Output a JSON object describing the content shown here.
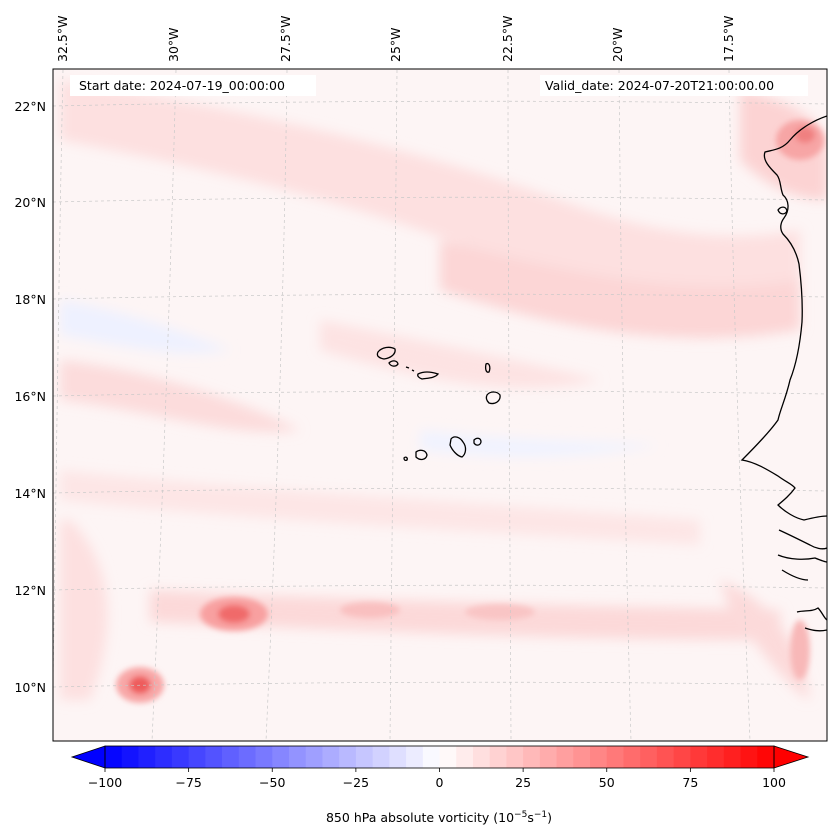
{
  "map": {
    "start_date": "Start date: 2024-07-19_00:00:00",
    "valid_date": "Valid_date: 2024-07-20T21:00:00.00",
    "variable": "850 hPa absolute vorticity",
    "units_prefix": "(10",
    "units_exp1": "−5",
    "units_mid": "s",
    "units_exp2": "−1",
    "units_suffix": ")",
    "lon_labels": [
      "32.5°W",
      "30°W",
      "27.5°W",
      "25°W",
      "22.5°W",
      "20°W",
      "17.5°W"
    ],
    "lat_labels": [
      "22°N",
      "20°N",
      "18°N",
      "16°N",
      "14°N",
      "12°N",
      "10°N"
    ],
    "colorbar": {
      "min": -100,
      "max": 100,
      "tick_labels": [
        "−100",
        "−75",
        "−50",
        "−25",
        "0",
        "25",
        "50",
        "75",
        "100"
      ],
      "levels": 40,
      "low_color": "#0000ff",
      "high_color": "#ff0000"
    },
    "colors": {
      "coast": "#000000",
      "grid": "#c8c8c8",
      "positive": "#ff0000",
      "negative": "#0000ff"
    }
  }
}
